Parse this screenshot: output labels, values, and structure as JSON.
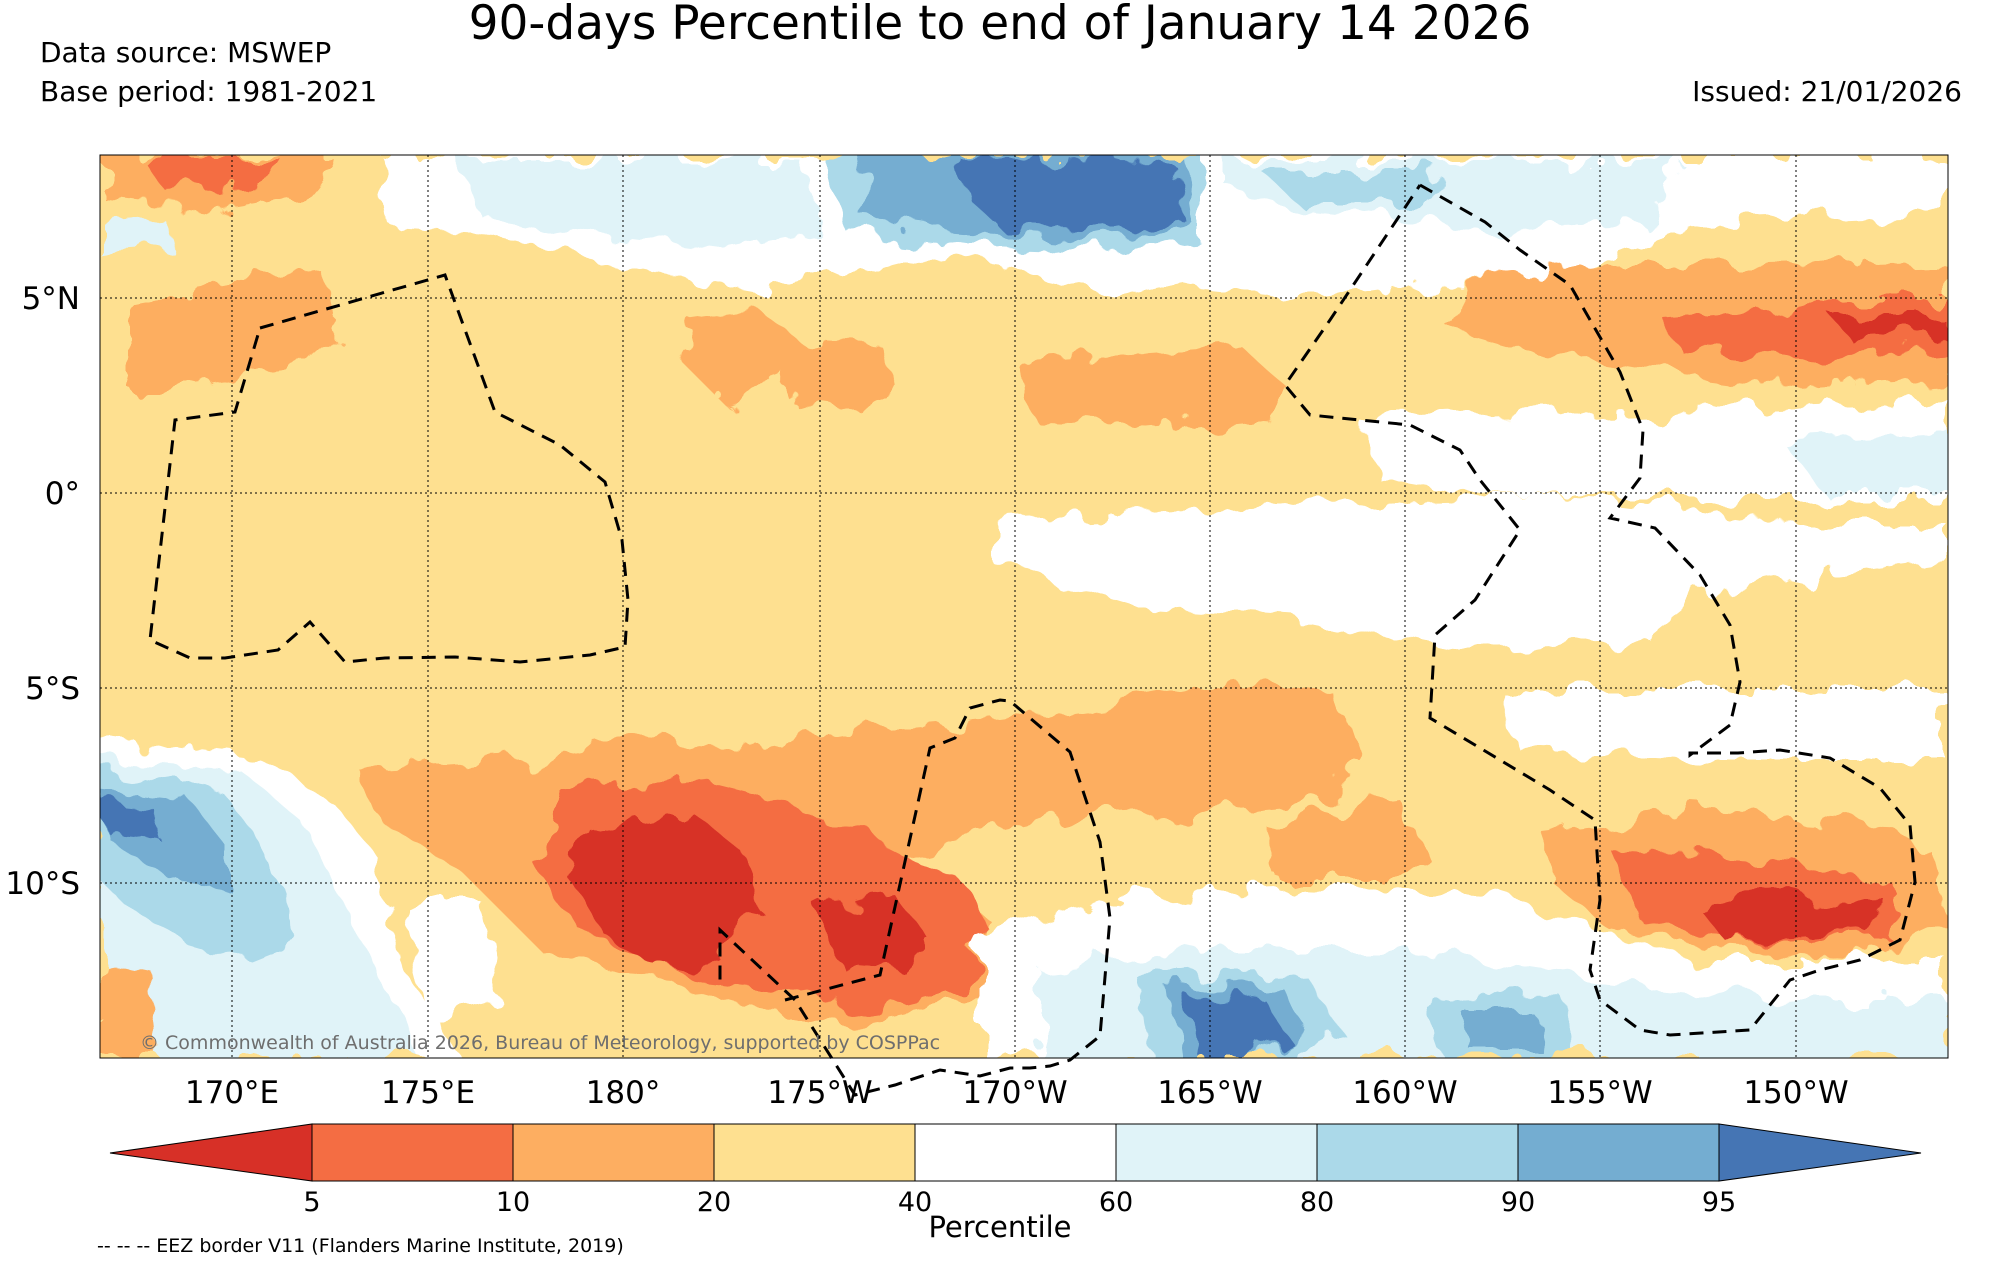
{
  "title": "90-days Percentile to end of January 14 2026",
  "data_source": "Data source: MSWEP",
  "base_period": "Base period: 1981-2021",
  "issued": "Issued: 21/01/2026",
  "attribution": "© Commonwealth of Australia 2026, Bureau of Meteorology, supported by COSPPac",
  "map": {
    "lon_labels": [
      "170°E",
      "175°E",
      "180°",
      "175°W",
      "170°W",
      "165°W",
      "160°W",
      "155°W",
      "150°W"
    ],
    "lat_labels": [
      "5°N",
      "0°",
      "5°S",
      "10°S"
    ],
    "legend_eez": "-- -- -- EEZ border V11 (Flanders Marine Institute, 2019)"
  },
  "colorbar": {
    "title": "Percentile",
    "ticks": [
      "5",
      "10",
      "20",
      "40",
      "60",
      "80",
      "90",
      "95"
    ],
    "colors": [
      "#d73027",
      "#f46d43",
      "#fdae61",
      "#fee090",
      "#ffffff",
      "#e0f3f8",
      "#abd9e9",
      "#74add1",
      "#4575b4"
    ]
  }
}
